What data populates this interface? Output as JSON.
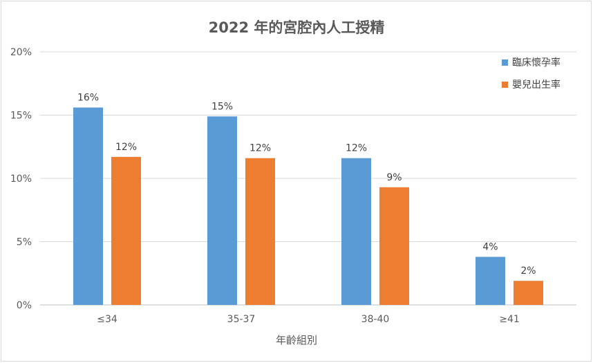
{
  "chart_data": {
    "type": "bar",
    "title": "2022 年的宮腔內人工授精",
    "xlabel": "年齡組別",
    "ylabel": "",
    "categories": [
      "≤34",
      "35-37",
      "38-40",
      "≥41"
    ],
    "series": [
      {
        "name": "臨床懷孕率",
        "values": [
          15.6,
          14.9,
          11.6,
          3.8
        ],
        "labels": [
          "16%",
          "15%",
          "12%",
          "4%"
        ],
        "color": "#5b9bd5"
      },
      {
        "name": "嬰兒出生率",
        "values": [
          11.7,
          11.6,
          9.3,
          1.9
        ],
        "labels": [
          "12%",
          "12%",
          "9%",
          "2%"
        ],
        "color": "#ed7d31"
      }
    ],
    "yticks": [
      "0%",
      "5%",
      "10%",
      "15%",
      "20%"
    ],
    "ylim": [
      0,
      20
    ],
    "grid": true,
    "legend": "top-right"
  }
}
